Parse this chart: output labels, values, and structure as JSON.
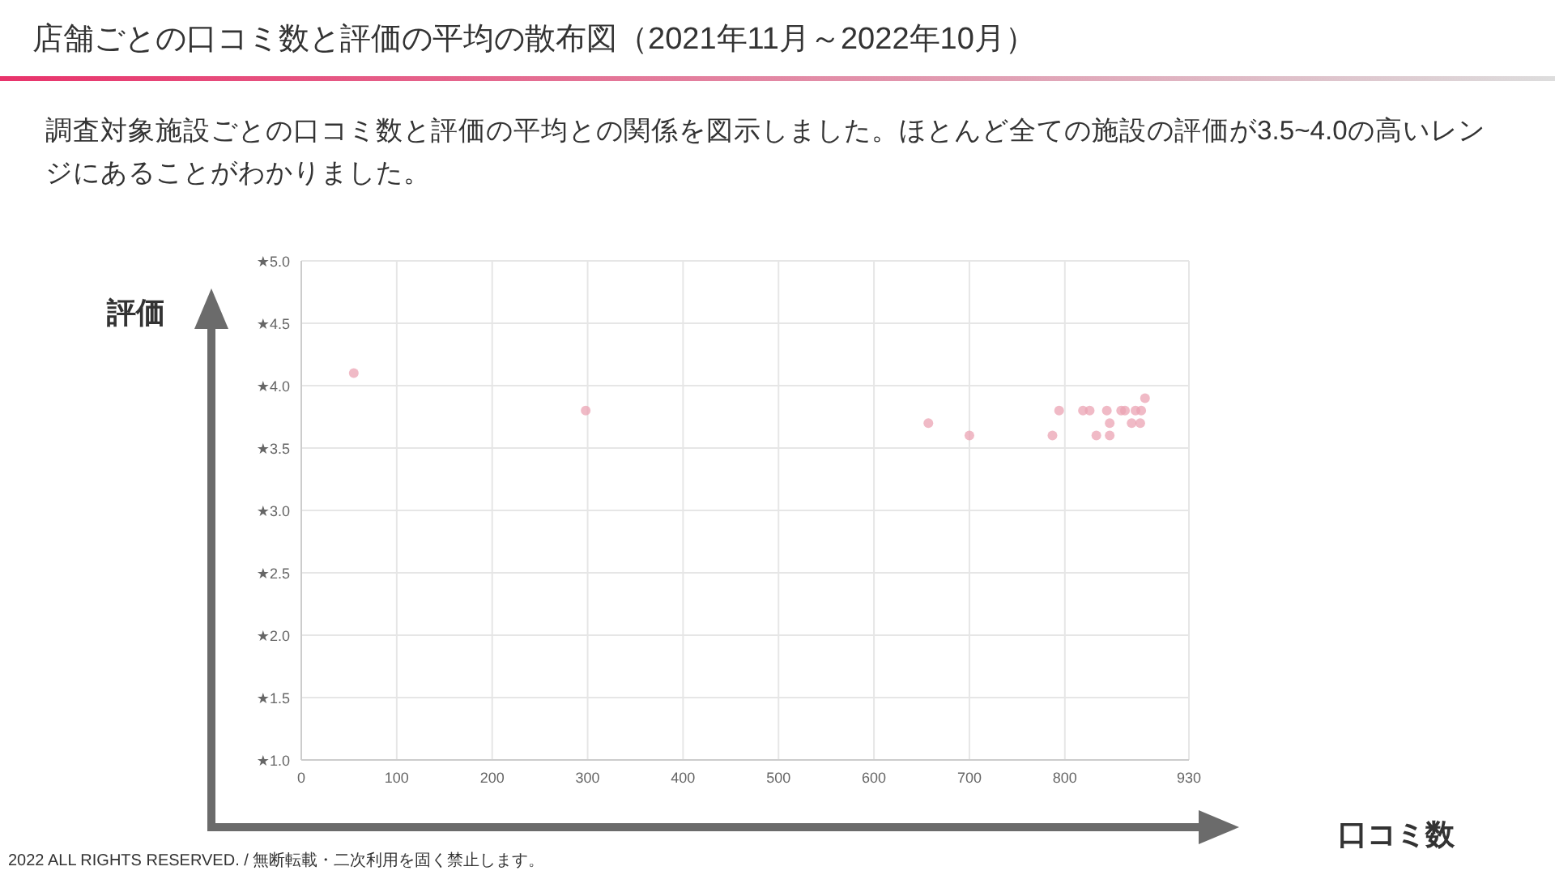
{
  "chart_data": {
    "type": "scatter",
    "title": "店舗ごとの口コミ数と評価の平均の散布図（2021年11月～2022年10月）",
    "subtitle": "調査対象施設ごとの口コミ数と評価の平均との関係を図示しました。ほとんど全ての施設の評価が3.5~4.0の高いレンジにあることがわかりました。",
    "xlabel": "口コミ数",
    "ylabel": "評価",
    "annotations": [
      "2022 ALL RIGHTS RESERVED. / 無断転載・二次利用を固く禁止します。"
    ],
    "x": [
      55,
      298,
      657,
      700,
      787,
      794,
      819,
      826,
      833,
      844,
      847,
      847,
      859,
      863,
      870,
      874,
      880,
      879,
      884
    ],
    "series": [
      {
        "color": "#eba3b3",
        "values": [
          4.1,
          3.8,
          3.7,
          3.6,
          3.6,
          3.8,
          3.8,
          3.8,
          3.6,
          3.8,
          3.7,
          3.6,
          3.8,
          3.8,
          3.7,
          3.8,
          3.8,
          3.7,
          3.9
        ]
      }
    ],
    "xlim": [
      0,
      930
    ],
    "xticks": [
      0,
      100,
      200,
      300,
      400,
      500,
      600,
      700,
      800,
      930
    ],
    "ylim": [
      1,
      5
    ],
    "yticks": [
      {
        "value": 1,
        "label": "★1.0"
      },
      {
        "value": 1.5,
        "label": "★1.5"
      },
      {
        "value": 2,
        "label": "★2.0"
      },
      {
        "value": 2.5,
        "label": "★2.5"
      },
      {
        "value": 3,
        "label": "★3.0"
      },
      {
        "value": 3.5,
        "label": "★3.5"
      },
      {
        "value": 4,
        "label": "★4.0"
      },
      {
        "value": 4.5,
        "label": "★4.5"
      },
      {
        "value": 5,
        "label": "★5.0"
      }
    ],
    "grid": true,
    "marker": "circle"
  }
}
